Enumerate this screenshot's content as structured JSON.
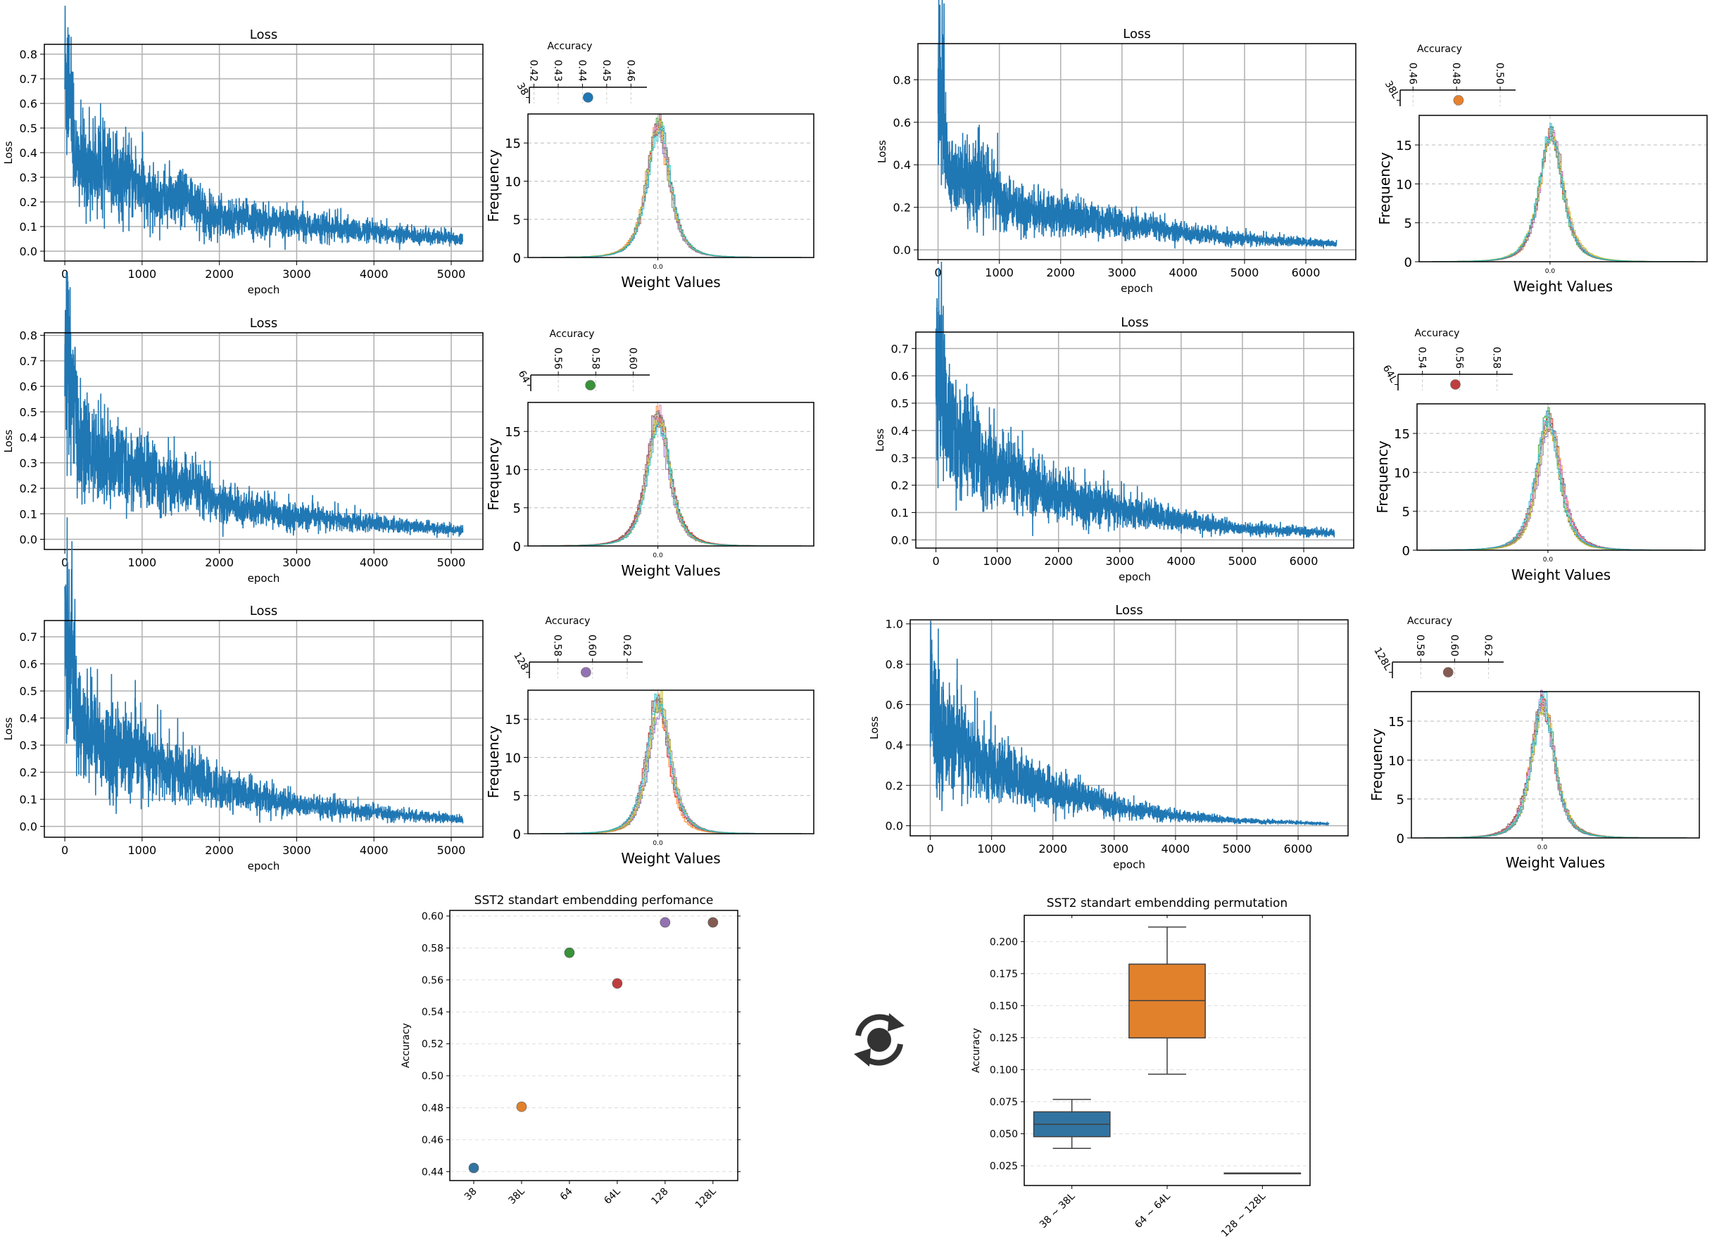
{
  "refresh_icon": "refresh-icon",
  "chart_data": {
    "panels": [
      {
        "model": "38",
        "color": "#1f77b4",
        "loss": {
          "type": "line",
          "title": "Loss",
          "xlabel": "epoch",
          "ylabel": "Loss",
          "epochs": 5150,
          "xlim": [
            -265,
            5410
          ],
          "xticks": [
            "0",
            "1000",
            "2000",
            "3000",
            "4000",
            "5000"
          ],
          "ylim": [
            -0.04,
            0.84
          ],
          "yticks": [
            "0.0",
            "0.1",
            "0.2",
            "0.3",
            "0.4",
            "0.5",
            "0.6",
            "0.7",
            "0.8"
          ],
          "ystep": 0.1,
          "envelope": [
            [
              0,
              0.72
            ],
            [
              60,
              0.68
            ],
            [
              150,
              0.36
            ],
            [
              1000,
              0.27
            ],
            [
              1050,
              0.22
            ],
            [
              1750,
              0.2
            ],
            [
              1800,
              0.15
            ],
            [
              3000,
              0.11
            ],
            [
              4000,
              0.075
            ],
            [
              5150,
              0.05
            ]
          ],
          "line_color": "#1f77b4",
          "grid": true
        },
        "weights": {
          "type": "line",
          "xlabel": "Weight Values",
          "ylabel": "Frequency",
          "xtick": "0.0",
          "yticks": [
            "0",
            "5",
            "10",
            "15"
          ],
          "ylim": [
            0,
            18.8
          ],
          "peak": 17.2,
          "runs": 10
        },
        "accuracy": {
          "type": "scatter",
          "title": "Accuracy",
          "label": "38",
          "ticks": [
            "0.42",
            "0.43",
            "0.44",
            "0.45",
            "0.46"
          ],
          "tick_values": [
            0.42,
            0.43,
            0.44,
            0.45,
            0.46
          ],
          "xlim": [
            0.4181,
            0.4666
          ],
          "value": 0.4423
        }
      },
      {
        "model": "38L",
        "color": "#e6822e",
        "loss": {
          "type": "line",
          "title": "Loss",
          "xlabel": "epoch",
          "ylabel": "Loss",
          "epochs": 6500,
          "xlim": [
            -328,
            6815
          ],
          "xticks": [
            "0",
            "1000",
            "2000",
            "3000",
            "4000",
            "5000",
            "6000"
          ],
          "ylim": [
            -0.046,
            0.97
          ],
          "yticks": [
            "0.0",
            "0.2",
            "0.4",
            "0.6",
            "0.8"
          ],
          "ystep": 0.2,
          "envelope": [
            [
              0,
              0.76
            ],
            [
              100,
              0.66
            ],
            [
              150,
              0.36
            ],
            [
              1000,
              0.28
            ],
            [
              1050,
              0.2
            ],
            [
              2000,
              0.16
            ],
            [
              3000,
              0.12
            ],
            [
              4000,
              0.08
            ],
            [
              5000,
              0.05
            ],
            [
              6500,
              0.028
            ]
          ],
          "line_color": "#1f77b4",
          "grid": true
        },
        "weights": {
          "type": "line",
          "xlabel": "Weight Values",
          "ylabel": "Frequency",
          "xtick": "0.0",
          "yticks": [
            "0",
            "5",
            "10",
            "15"
          ],
          "ylim": [
            0,
            18.8
          ],
          "peak": 16.6,
          "runs": 10
        },
        "accuracy": {
          "type": "scatter",
          "title": "Accuracy",
          "label": "38L",
          "ticks": [
            "0.46",
            "0.48",
            "0.50"
          ],
          "tick_values": [
            0.46,
            0.48,
            0.5
          ],
          "xlim": [
            0.4541,
            0.5071
          ],
          "value": 0.4809
        }
      },
      {
        "model": "64",
        "color": "#3a923a",
        "loss": {
          "type": "line",
          "title": "Loss",
          "xlabel": "epoch",
          "ylabel": "Loss",
          "epochs": 5150,
          "xlim": [
            -265,
            5410
          ],
          "xticks": [
            "0",
            "1000",
            "2000",
            "3000",
            "4000",
            "5000"
          ],
          "ylim": [
            -0.04,
            0.81
          ],
          "yticks": [
            "0.0",
            "0.1",
            "0.2",
            "0.3",
            "0.4",
            "0.5",
            "0.6",
            "0.7",
            "0.8"
          ],
          "ystep": 0.1,
          "envelope": [
            [
              0,
              0.72
            ],
            [
              80,
              0.62
            ],
            [
              200,
              0.35
            ],
            [
              1000,
              0.26
            ],
            [
              1800,
              0.18
            ],
            [
              2000,
              0.14
            ],
            [
              3000,
              0.09
            ],
            [
              4000,
              0.06
            ],
            [
              5150,
              0.035
            ]
          ],
          "line_color": "#1f77b4",
          "grid": true
        },
        "weights": {
          "type": "line",
          "xlabel": "Weight Values",
          "ylabel": "Frequency",
          "xtick": "0.0",
          "yticks": [
            "0",
            "5",
            "10",
            "15"
          ],
          "ylim": [
            0,
            18.8
          ],
          "peak": 17.0,
          "runs": 10
        },
        "accuracy": {
          "type": "scatter",
          "title": "Accuracy",
          "label": "64",
          "ticks": [
            "0.56",
            "0.58",
            "0.60"
          ],
          "tick_values": [
            0.56,
            0.58,
            0.6
          ],
          "xlim": [
            0.5453,
            0.6088
          ],
          "value": 0.5771
        }
      },
      {
        "model": "64L",
        "color": "#c03d3e",
        "loss": {
          "type": "line",
          "title": "Loss",
          "xlabel": "epoch",
          "ylabel": "Loss",
          "epochs": 6500,
          "xlim": [
            -328,
            6815
          ],
          "xticks": [
            "0",
            "1000",
            "2000",
            "3000",
            "4000",
            "5000",
            "6000"
          ],
          "ylim": [
            -0.03,
            0.76
          ],
          "yticks": [
            "0.0",
            "0.1",
            "0.2",
            "0.3",
            "0.4",
            "0.5",
            "0.6",
            "0.7"
          ],
          "ystep": 0.1,
          "envelope": [
            [
              0,
              0.7
            ],
            [
              100,
              0.6
            ],
            [
              200,
              0.4
            ],
            [
              1000,
              0.25
            ],
            [
              2000,
              0.16
            ],
            [
              3000,
              0.11
            ],
            [
              4000,
              0.07
            ],
            [
              5000,
              0.04
            ],
            [
              6500,
              0.025
            ]
          ],
          "line_color": "#1f77b4",
          "grid": true
        },
        "weights": {
          "type": "line",
          "xlabel": "Weight Values",
          "ylabel": "Frequency",
          "xtick": "0.0",
          "yticks": [
            "0",
            "5",
            "10",
            "15"
          ],
          "ylim": [
            0,
            18.8
          ],
          "peak": 16.8,
          "runs": 10
        },
        "accuracy": {
          "type": "scatter",
          "title": "Accuracy",
          "label": "64L",
          "ticks": [
            "0.54",
            "0.56",
            "0.58"
          ],
          "tick_values": [
            0.54,
            0.56,
            0.58
          ],
          "xlim": [
            0.5269,
            0.5885
          ],
          "value": 0.5577
        }
      },
      {
        "model": "128",
        "color": "#9372b2",
        "loss": {
          "type": "line",
          "title": "Loss",
          "xlabel": "epoch",
          "ylabel": "Loss",
          "epochs": 5150,
          "xlim": [
            -265,
            5410
          ],
          "xticks": [
            "0",
            "1000",
            "2000",
            "3000",
            "4000",
            "5000"
          ],
          "ylim": [
            -0.04,
            0.76
          ],
          "yticks": [
            "0.0",
            "0.1",
            "0.2",
            "0.3",
            "0.4",
            "0.5",
            "0.6",
            "0.7"
          ],
          "ystep": 0.1,
          "envelope": [
            [
              0,
              0.7
            ],
            [
              100,
              0.6
            ],
            [
              200,
              0.35
            ],
            [
              1000,
              0.25
            ],
            [
              2000,
              0.14
            ],
            [
              2300,
              0.12
            ],
            [
              3000,
              0.08
            ],
            [
              4000,
              0.05
            ],
            [
              5150,
              0.025
            ]
          ],
          "line_color": "#1f77b4",
          "grid": true
        },
        "weights": {
          "type": "line",
          "xlabel": "Weight Values",
          "ylabel": "Frequency",
          "xtick": "0.0",
          "yticks": [
            "0",
            "5",
            "10",
            "15"
          ],
          "ylim": [
            0,
            18.8
          ],
          "peak": 17.2,
          "runs": 10
        },
        "accuracy": {
          "type": "scatter",
          "title": "Accuracy",
          "label": "128",
          "ticks": [
            "0.58",
            "0.60",
            "0.62"
          ],
          "tick_values": [
            0.58,
            0.6,
            0.62
          ],
          "xlim": [
            0.5636,
            0.6289
          ],
          "value": 0.5962
        }
      },
      {
        "model": "128L",
        "color": "#845b53",
        "loss": {
          "type": "line",
          "title": "Loss",
          "xlabel": "epoch",
          "ylabel": "Loss",
          "epochs": 6500,
          "xlim": [
            -328,
            6815
          ],
          "xticks": [
            "0",
            "1000",
            "2000",
            "3000",
            "4000",
            "5000",
            "6000"
          ],
          "ylim": [
            -0.05,
            1.02
          ],
          "yticks": [
            "0.0",
            "0.2",
            "0.4",
            "0.6",
            "0.8",
            "1.0"
          ],
          "ystep": 0.2,
          "envelope": [
            [
              0,
              0.85
            ],
            [
              50,
              0.6
            ],
            [
              200,
              0.45
            ],
            [
              1000,
              0.28
            ],
            [
              2000,
              0.17
            ],
            [
              2700,
              0.13
            ],
            [
              3000,
              0.09
            ],
            [
              4000,
              0.05
            ],
            [
              5000,
              0.025
            ],
            [
              6500,
              0.01
            ]
          ],
          "line_color": "#1f77b4",
          "grid": true
        },
        "weights": {
          "type": "line",
          "xlabel": "Weight Values",
          "ylabel": "Frequency",
          "xtick": "0.0",
          "yticks": [
            "0",
            "5",
            "10",
            "15"
          ],
          "ylim": [
            0,
            18.8
          ],
          "peak": 17.4,
          "runs": 10
        },
        "accuracy": {
          "type": "scatter",
          "title": "Accuracy",
          "label": "128L",
          "ticks": [
            "0.58",
            "0.60",
            "0.62"
          ],
          "tick_values": [
            0.58,
            0.6,
            0.62
          ],
          "xlim": [
            0.5633,
            0.6289
          ],
          "value": 0.5962
        }
      }
    ],
    "run_colors": [
      "#1f77b4",
      "#ff7f0e",
      "#2ca02c",
      "#d62728",
      "#9467bd",
      "#8c564b",
      "#e377c2",
      "#7f7f7f",
      "#bcbd22",
      "#17becf"
    ],
    "scatter": {
      "type": "scatter",
      "title": "SST2 standart embendding perfomance",
      "xlabel": "",
      "ylabel": "Accuracy",
      "categories": [
        "38",
        "38L",
        "64",
        "64L",
        "128",
        "128L"
      ],
      "values": [
        0.4423,
        0.4806,
        0.577,
        0.5578,
        0.596,
        0.596
      ],
      "colors": [
        "#3274a1",
        "#e1812c",
        "#3a923a",
        "#c03d3e",
        "#9372b2",
        "#845b53"
      ],
      "ylim": [
        0.4344,
        0.6035
      ],
      "yticks": [
        "0.44",
        "0.46",
        "0.48",
        "0.50",
        "0.52",
        "0.54",
        "0.56",
        "0.58",
        "0.60"
      ],
      "ytick_values": [
        0.44,
        0.46,
        0.48,
        0.5,
        0.52,
        0.54,
        0.56,
        0.58,
        0.6
      ],
      "grid": "dashed-horizontal"
    },
    "boxplot": {
      "type": "box",
      "title": "SST2 standart embendding permutation",
      "xlabel": "",
      "ylabel": "Accuracy",
      "categories": [
        "38 ~ 38L",
        "64 ~ 64L",
        "128 ~ 128L"
      ],
      "boxes": [
        {
          "whislo": 0.0386,
          "q1": 0.0477,
          "med": 0.0574,
          "q3": 0.0671,
          "whishi": 0.0768
        },
        {
          "whislo": 0.0965,
          "q1": 0.1248,
          "med": 0.1539,
          "q3": 0.1824,
          "whishi": 0.2114
        },
        {
          "whislo": 0.0193,
          "q1": 0.0193,
          "med": 0.0193,
          "q3": 0.0193,
          "whishi": 0.0193
        }
      ],
      "colors": [
        "#3274a1",
        "#e1812c",
        "#3a923a"
      ],
      "ylim": [
        0.0096,
        0.2205
      ],
      "yticks": [
        "0.025",
        "0.050",
        "0.075",
        "0.100",
        "0.125",
        "0.150",
        "0.175",
        "0.200"
      ],
      "ytick_values": [
        0.025,
        0.05,
        0.075,
        0.1,
        0.125,
        0.15,
        0.175,
        0.2
      ],
      "grid": "dashed-horizontal"
    }
  }
}
